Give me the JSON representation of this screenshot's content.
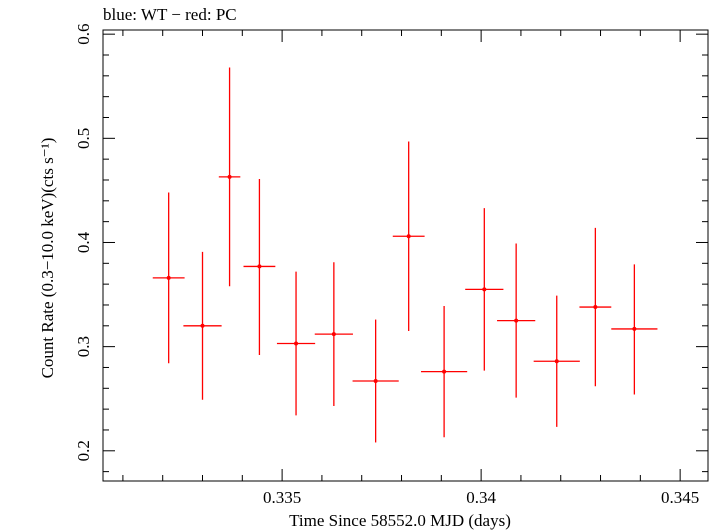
{
  "chart_data": {
    "type": "scatter",
    "title": "blue: WT − red: PC",
    "xlabel": "Time Since 58552.0 MJD (days)",
    "ylabel": "Count Rate (0.3−10.0 keV)(cts s⁻¹)",
    "xlim": [
      0.3305,
      0.3457
    ],
    "ylim": [
      0.171,
      0.604
    ],
    "x_ticks": [
      0.335,
      0.34,
      0.345
    ],
    "x_tick_labels": [
      "0.335",
      "0.34",
      "0.345"
    ],
    "y_ticks": [
      0.2,
      0.3,
      0.4,
      0.5,
      0.6
    ],
    "y_tick_labels": [
      "0.2",
      "0.3",
      "0.4",
      "0.5",
      "0.6"
    ],
    "grid": false,
    "series": [
      {
        "name": "PC",
        "color": "#ff0000",
        "points": [
          {
            "x": 0.33215,
            "xerr": 0.0004,
            "y": 0.366,
            "ylo": 0.284,
            "yhi": 0.448
          },
          {
            "x": 0.333,
            "xerr": 0.00048,
            "y": 0.32,
            "ylo": 0.249,
            "yhi": 0.391
          },
          {
            "x": 0.33368,
            "xerr": 0.00027,
            "y": 0.463,
            "ylo": 0.358,
            "yhi": 0.568
          },
          {
            "x": 0.33443,
            "xerr": 0.0004,
            "y": 0.377,
            "ylo": 0.292,
            "yhi": 0.461
          },
          {
            "x": 0.33535,
            "xerr": 0.00048,
            "y": 0.303,
            "ylo": 0.234,
            "yhi": 0.372
          },
          {
            "x": 0.3363,
            "xerr": 0.00048,
            "y": 0.312,
            "ylo": 0.243,
            "yhi": 0.381
          },
          {
            "x": 0.33735,
            "xerr": 0.00058,
            "y": 0.267,
            "ylo": 0.208,
            "yhi": 0.326
          },
          {
            "x": 0.33818,
            "xerr": 0.0004,
            "y": 0.406,
            "ylo": 0.315,
            "yhi": 0.497
          },
          {
            "x": 0.33907,
            "xerr": 0.00058,
            "y": 0.276,
            "ylo": 0.213,
            "yhi": 0.339
          },
          {
            "x": 0.34008,
            "xerr": 0.00048,
            "y": 0.355,
            "ylo": 0.277,
            "yhi": 0.433
          },
          {
            "x": 0.34088,
            "xerr": 0.00048,
            "y": 0.325,
            "ylo": 0.251,
            "yhi": 0.399
          },
          {
            "x": 0.3419,
            "xerr": 0.00058,
            "y": 0.286,
            "ylo": 0.223,
            "yhi": 0.349
          },
          {
            "x": 0.34287,
            "xerr": 0.0004,
            "y": 0.338,
            "ylo": 0.262,
            "yhi": 0.414
          },
          {
            "x": 0.34385,
            "xerr": 0.00058,
            "y": 0.317,
            "ylo": 0.254,
            "yhi": 0.379
          }
        ]
      }
    ]
  }
}
